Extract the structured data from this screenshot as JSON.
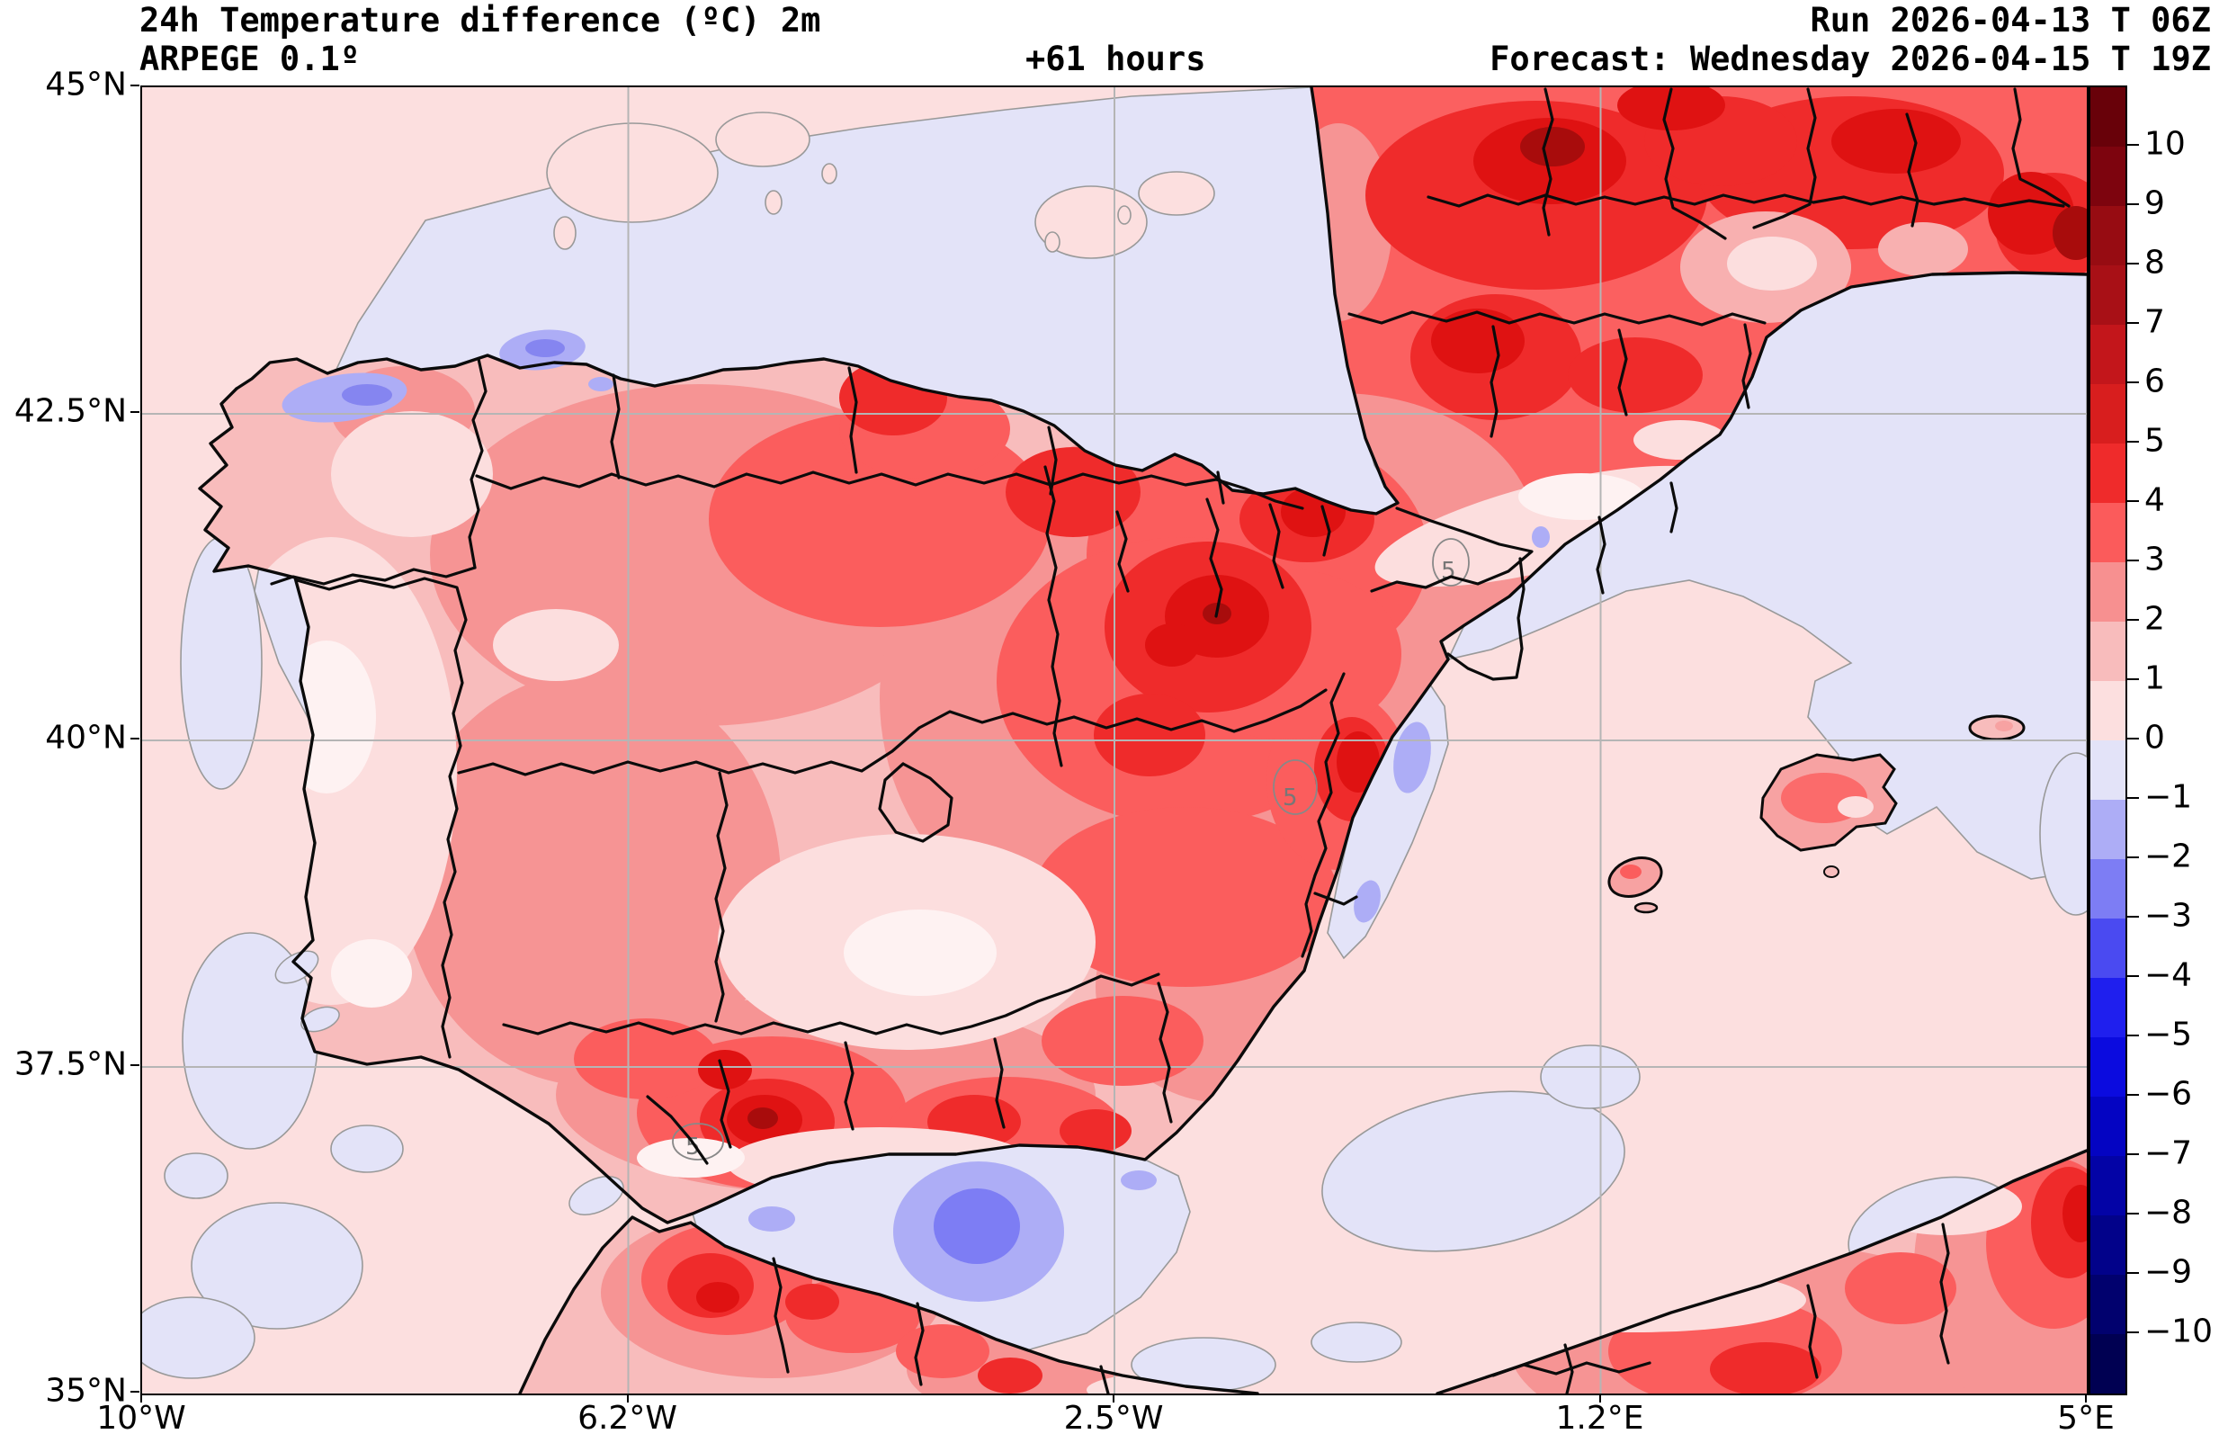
{
  "header": {
    "title": "24h Temperature difference (ºC) 2m",
    "model": "ARPEGE 0.1º",
    "lead_time": "+61 hours",
    "run": "Run 2026-04-13 T 06Z",
    "forecast": "Forecast: Wednesday 2026-04-15 T 19Z"
  },
  "axes": {
    "x_ticks": [
      "10°W",
      "6.2°W",
      "2.5°W",
      "1.2°E",
      "5°E"
    ],
    "y_ticks": [
      "45°N",
      "42.5°N",
      "40°N",
      "37.5°N",
      "35°N"
    ]
  },
  "colorbar": {
    "tick_labels": [
      "10",
      "9",
      "8",
      "7",
      "6",
      "5",
      "4",
      "3",
      "2",
      "1",
      "0",
      "−1",
      "−2",
      "−3",
      "−4",
      "−5",
      "−6",
      "−7",
      "−8",
      "−9",
      "−10"
    ],
    "segment_colors_top_to_bottom": [
      "#680109",
      "#7d040e",
      "#970c12",
      "#a81016",
      "#c3161b",
      "#d81e1e",
      "#ef2b2b",
      "#fb5b5b",
      "#f79090",
      "#f8bcbc",
      "#fcdfdf",
      "#e3e3f8",
      "#adadf6",
      "#7d7df4",
      "#4a4af1",
      "#1f1fee",
      "#0b0bdf",
      "#0404c2",
      "#0303a6",
      "#02028a",
      "#01016e",
      "#000052"
    ]
  },
  "chart_data": {
    "type": "heatmap",
    "title": "24h Temperature difference (ºC) 2m",
    "units": "°C",
    "model": "ARPEGE 0.1º",
    "run": "2026-04-13 06Z",
    "valid": "Wednesday 2026-04-15 19Z",
    "lead_hours": 61,
    "lon_range": [
      "10°W",
      "5°E"
    ],
    "lat_range": [
      "35°N",
      "45°N"
    ],
    "lon_ticks_deg": [
      -10,
      -6.25,
      -2.5,
      1.25,
      5
    ],
    "lat_ticks_deg": [
      45,
      42.5,
      40,
      37.5,
      35
    ],
    "levels_c": [
      -10,
      -9,
      -8,
      -7,
      -6,
      -5,
      -4,
      -3,
      -2,
      -1,
      0,
      1,
      2,
      3,
      4,
      5,
      6,
      7,
      8,
      9,
      10
    ],
    "colormap": "diverging blue-white-red, 1°C steps, dark navy below −10 to dark maroon above +10",
    "grid": true,
    "contour_labels": [
      "5",
      "5",
      "5"
    ],
    "regions": [
      {
        "area": "Atlantic Ocean (W and SW of Iberia)",
        "approx_diff_c": "0 to +1"
      },
      {
        "area": "Bay of Biscay and sea off N coast",
        "approx_diff_c": "−1 to 0"
      },
      {
        "area": "Cantabrian coast patches (N Spain)",
        "approx_diff_c": "−1 to −2"
      },
      {
        "area": "Galicia and coastal Portugal",
        "approx_diff_c": "0 to +2"
      },
      {
        "area": "Central and eastern Spain plateau",
        "approx_diff_c": "+2 to +5"
      },
      {
        "area": "Ebro valley / NE Spain",
        "approx_diff_c": "+4 to +6"
      },
      {
        "area": "SW Andalusia hotspot (Seville area)",
        "approx_diff_c": "+5 to +6"
      },
      {
        "area": "Inland Valencia hotspot",
        "approx_diff_c": "+5"
      },
      {
        "area": "Southern France",
        "approx_diff_c": "+3 to +7, locally higher"
      },
      {
        "area": "Mediterranean Sea (NE and Alboran)",
        "approx_diff_c": "0 to −1"
      },
      {
        "area": "Alboran Sea cold blob",
        "approx_diff_c": "−2 to −3"
      },
      {
        "area": "Balearic Islands",
        "approx_diff_c": "+1 to +3"
      },
      {
        "area": "North Africa interior",
        "approx_diff_c": "+2 to +5"
      }
    ]
  }
}
